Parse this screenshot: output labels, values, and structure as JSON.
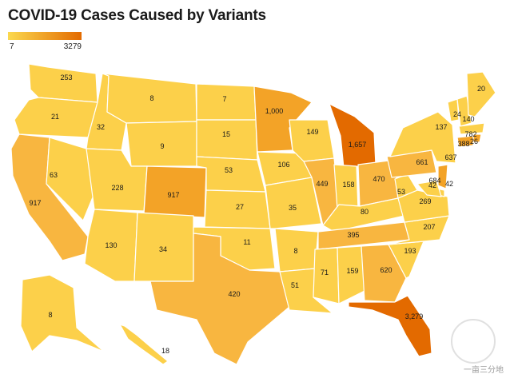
{
  "title": "COVID-19 Cases Caused by Variants",
  "legend": {
    "min": "7",
    "max": "3279",
    "color_low": "#fbd94f",
    "color_high": "#e36a00"
  },
  "colors": {
    "base": "#fcd04a",
    "mid": "#f8b640",
    "high": "#f3a327",
    "top": "#e36a00",
    "border": "#ffffff"
  },
  "watermark": "一亩三分地",
  "states": {
    "WA": "253",
    "OR": "21",
    "CA": "917",
    "ID": "32",
    "NV": "63",
    "MT": "8",
    "WY": "9",
    "UT": "228",
    "AZ": "130",
    "CO": "917",
    "NM": "34",
    "ND": "7",
    "SD": "15",
    "NE": "53",
    "KS": "27",
    "OK": "11",
    "TX": "420",
    "MN": "1,000",
    "IA": "106",
    "MO": "35",
    "AR": "8",
    "LA": "51",
    "WI": "149",
    "IL": "449",
    "MI": "1,657",
    "IN": "158",
    "OH": "470",
    "KY": "80",
    "TN": "395",
    "MS": "71",
    "AL": "159",
    "GA": "620",
    "FL": "3,279",
    "SC": "193",
    "NC": "207",
    "VA": "269",
    "WV": "53",
    "PA": "661",
    "NY": "637",
    "NJ": "684",
    "DE": "42",
    "MD": "42",
    "VT": "24",
    "NH": "137",
    "ME": "20",
    "MA": "140",
    "RI": "782",
    "CT": "388",
    "CT2": "26",
    "AK": "8",
    "HI": "18"
  }
}
